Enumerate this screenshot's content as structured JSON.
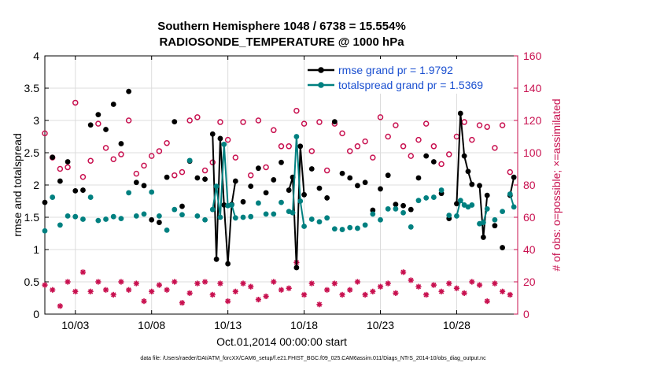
{
  "chart_data": {
    "type": "line",
    "title": "Southern Hemisphere 1048 / 6738 = 15.554%",
    "subtitle": "RADIOSONDE_TEMPERATURE @ 1000 hPa",
    "xlabel": "Oct.01,2014 00:00:00 start",
    "ylabel": "rmse and totalspread",
    "ylabel_right": "# of obs: o=possible; ×=assimilated",
    "footnote": "data file: /Users/raeder/DAI/ATM_forcXX/CAM6_setup/f.e21.FHIST_BGC.f09_025.CAM6assim.011/Diags_NTrS_2014-10/obs_diag_output.nc",
    "xlim": [
      1,
      32
    ],
    "ylim": [
      0,
      4
    ],
    "ylim_right": [
      0,
      160
    ],
    "xticks": [
      3,
      8,
      13,
      18,
      23,
      28
    ],
    "xtick_labels": [
      "10/03",
      "10/08",
      "10/13",
      "10/18",
      "10/23",
      "10/28"
    ],
    "yticks": [
      "0",
      "0.5",
      "1",
      "1.5",
      "2",
      "2.5",
      "3",
      "3.5",
      "4"
    ],
    "yticks_right": [
      "0",
      "20",
      "40",
      "60",
      "80",
      "100",
      "120",
      "140",
      "160"
    ],
    "grid": true,
    "legend_position": "top-right",
    "colors": {
      "rmse": "#000000",
      "spread": "#008080",
      "obs": "#c8104f"
    },
    "series": [
      {
        "name": "rmse grand pr = 1.9792",
        "axis": "left",
        "x": [
          1.0,
          1.5,
          2.0,
          2.5,
          3.0,
          3.5,
          4.0,
          4.5,
          5.0,
          5.5,
          6.0,
          6.5,
          7.0,
          7.5,
          8.0,
          8.5,
          9.0,
          9.5,
          10.0,
          10.5,
          11.0,
          11.5,
          12.0,
          12.25,
          12.5,
          12.75,
          13.0,
          13.25,
          13.5,
          14.0,
          14.5,
          15.0,
          15.5,
          16.0,
          16.5,
          17.0,
          17.25,
          17.5,
          17.75,
          18.0,
          18.5,
          19.0,
          19.5,
          20.0,
          20.5,
          21.0,
          21.5,
          22.0,
          22.5,
          23.0,
          23.5,
          24.0,
          24.5,
          25.0,
          25.5,
          26.0,
          26.5,
          27.0,
          27.5,
          28.0,
          28.25,
          28.5,
          28.75,
          29.0,
          29.5,
          29.75,
          30.0,
          30.5,
          31.0,
          31.5,
          31.75
        ],
        "y": [
          1.73,
          2.43,
          2.06,
          2.36,
          1.91,
          1.92,
          2.93,
          3.09,
          2.86,
          3.25,
          2.64,
          3.45,
          2.04,
          1.99,
          1.46,
          1.42,
          2.12,
          2.98,
          1.67,
          2.37,
          2.11,
          2.09,
          2.79,
          0.85,
          2.72,
          1.69,
          0.78,
          1.7,
          2.06,
          1.74,
          1.98,
          2.26,
          1.88,
          2.08,
          2.35,
          1.92,
          2.12,
          0.72,
          2.6,
          1.85,
          2.25,
          1.95,
          1.8,
          2.98,
          2.18,
          2.11,
          1.99,
          2.04,
          1.61,
          1.94,
          2.15,
          1.7,
          1.68,
          1.62,
          2.11,
          2.45,
          2.36,
          1.87,
          1.48,
          1.71,
          3.11,
          2.45,
          2.21,
          2.01,
          1.99,
          1.19,
          1.84,
          1.37,
          1.03,
          1.84,
          2.12
        ]
      },
      {
        "name": "totalspread grand pr = 1.5369",
        "axis": "left",
        "x": [
          1.0,
          1.5,
          2.0,
          2.5,
          3.0,
          3.5,
          4.0,
          4.5,
          5.0,
          5.5,
          6.0,
          6.5,
          7.0,
          7.5,
          8.0,
          8.5,
          9.0,
          9.5,
          10.0,
          10.5,
          11.0,
          11.5,
          12.0,
          12.25,
          12.5,
          12.75,
          13.0,
          13.25,
          13.5,
          14.0,
          14.5,
          15.0,
          15.5,
          16.0,
          16.5,
          17.0,
          17.25,
          17.5,
          17.75,
          18.0,
          18.5,
          19.0,
          19.5,
          20.0,
          20.5,
          21.0,
          21.5,
          22.0,
          22.5,
          23.0,
          23.5,
          24.0,
          24.5,
          25.0,
          25.5,
          26.0,
          26.5,
          27.0,
          27.5,
          28.0,
          28.25,
          28.5,
          28.75,
          29.0,
          29.5,
          29.75,
          30.0,
          30.5,
          31.0,
          31.5,
          31.75
        ],
        "y": [
          1.29,
          1.81,
          1.38,
          1.52,
          1.51,
          1.47,
          1.81,
          1.45,
          1.47,
          1.51,
          1.48,
          1.88,
          1.52,
          1.55,
          1.89,
          1.52,
          1.3,
          1.62,
          1.54,
          2.38,
          1.52,
          1.46,
          1.62,
          1.98,
          1.5,
          2.63,
          1.68,
          1.69,
          1.49,
          1.5,
          1.51,
          1.72,
          1.55,
          1.55,
          1.73,
          1.59,
          1.57,
          2.75,
          1.75,
          1.36,
          1.47,
          1.43,
          1.49,
          1.32,
          1.31,
          1.34,
          1.33,
          1.38,
          1.55,
          1.46,
          1.63,
          1.63,
          1.57,
          1.35,
          1.76,
          1.8,
          1.81,
          1.92,
          1.53,
          1.52,
          1.76,
          1.69,
          1.66,
          1.69,
          1.4,
          1.42,
          1.63,
          1.46,
          1.59,
          1.86,
          1.66
        ]
      },
      {
        "name": "# of obs possible",
        "axis": "right",
        "marker": "o",
        "x": [
          1.0,
          1.5,
          2.0,
          2.5,
          3.0,
          3.5,
          4.0,
          4.5,
          5.0,
          5.5,
          6.0,
          6.5,
          7.0,
          7.5,
          8.0,
          8.5,
          9.0,
          9.5,
          10.0,
          10.5,
          11.0,
          11.5,
          12.0,
          12.5,
          13.0,
          13.5,
          14.0,
          14.5,
          15.0,
          15.5,
          16.0,
          16.5,
          17.0,
          17.5,
          18.0,
          18.5,
          19.0,
          19.5,
          20.0,
          20.5,
          21.0,
          21.5,
          22.0,
          22.5,
          23.0,
          23.5,
          24.0,
          24.5,
          25.0,
          25.5,
          26.0,
          26.5,
          27.0,
          27.5,
          28.0,
          28.5,
          29.0,
          29.5,
          30.0,
          30.5,
          31.0,
          31.5
        ],
        "y": [
          112,
          97,
          90,
          91,
          131,
          85,
          95,
          118,
          103,
          96,
          99,
          120,
          87,
          92,
          98,
          101,
          106,
          86,
          88,
          120,
          122,
          89,
          94,
          119,
          108,
          97,
          119,
          86,
          120,
          91,
          114,
          104,
          104,
          126,
          118,
          101,
          119,
          89,
          118,
          112,
          101,
          104,
          107,
          97,
          122,
          110,
          117,
          104,
          98,
          108,
          118,
          104,
          93,
          99,
          110,
          119,
          108,
          117,
          116,
          103,
          117,
          88
        ]
      },
      {
        "name": "# of obs assimilated",
        "axis": "right",
        "marker": "*",
        "x": [
          1.0,
          1.5,
          2.0,
          2.5,
          3.0,
          3.5,
          4.0,
          4.5,
          5.0,
          5.5,
          6.0,
          6.5,
          7.0,
          7.5,
          8.0,
          8.5,
          9.0,
          9.5,
          10.0,
          10.5,
          11.0,
          11.5,
          12.0,
          12.5,
          13.0,
          13.5,
          14.0,
          14.5,
          15.0,
          15.5,
          16.0,
          16.5,
          17.0,
          17.5,
          18.0,
          18.5,
          19.0,
          19.5,
          20.0,
          20.5,
          21.0,
          21.5,
          22.0,
          22.5,
          23.0,
          23.5,
          24.0,
          24.5,
          25.0,
          25.5,
          26.0,
          26.5,
          27.0,
          27.5,
          28.0,
          28.5,
          29.0,
          29.5,
          30.0,
          30.5,
          31.0,
          31.5
        ],
        "y": [
          18,
          15,
          5,
          20,
          14,
          26,
          14,
          20,
          15,
          12,
          20,
          15,
          19,
          8,
          14,
          18,
          15,
          20,
          7,
          13,
          19,
          20,
          12,
          19,
          8,
          14,
          19,
          17,
          9,
          11,
          20,
          15,
          16,
          32,
          12,
          19,
          6,
          15,
          19,
          12,
          15,
          20,
          12,
          14,
          17,
          19,
          13,
          26,
          21,
          17,
          12,
          18,
          14,
          19,
          16,
          13,
          20,
          18,
          8,
          19,
          14,
          12
        ]
      }
    ]
  }
}
